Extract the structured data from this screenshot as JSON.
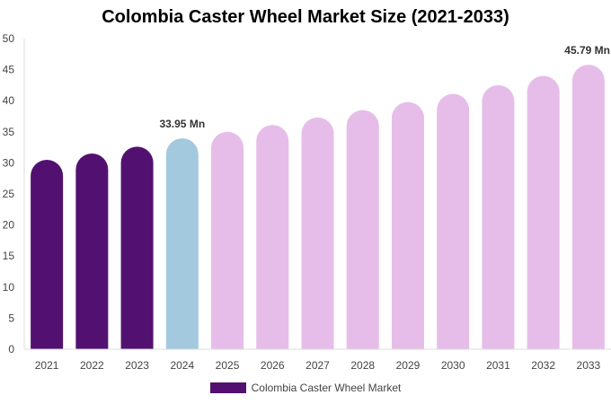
{
  "chart_data": {
    "type": "bar",
    "title": "Colombia Caster Wheel Market Size (2021-2033)",
    "categories": [
      "2021",
      "2022",
      "2023",
      "2024",
      "2025",
      "2026",
      "2027",
      "2028",
      "2029",
      "2030",
      "2031",
      "2032",
      "2033"
    ],
    "series": [
      {
        "name": "Colombia Caster Wheel Market",
        "values": [
          30.5,
          31.5,
          32.6,
          33.95,
          35.0,
          36.1,
          37.3,
          38.5,
          39.8,
          41.1,
          42.5,
          44.0,
          45.79
        ]
      }
    ],
    "bar_colors": [
      "#521170",
      "#521170",
      "#521170",
      "#a3c9df",
      "#e6bde9",
      "#e6bde9",
      "#e6bde9",
      "#e6bde9",
      "#e6bde9",
      "#e6bde9",
      "#e6bde9",
      "#e6bde9",
      "#e6bde9"
    ],
    "data_labels": [
      {
        "index": 3,
        "text": "33.95 Mn"
      },
      {
        "index": 12,
        "text": "45.79 Mn"
      }
    ],
    "yticks": [
      0,
      5,
      10,
      15,
      20,
      25,
      30,
      35,
      40,
      45,
      50
    ],
    "ylim": [
      0,
      50
    ],
    "xlabel": "",
    "ylabel": "",
    "grid": false,
    "legend": {
      "position": "bottom",
      "label": "Colombia Caster Wheel Market",
      "color": "#521170"
    }
  }
}
